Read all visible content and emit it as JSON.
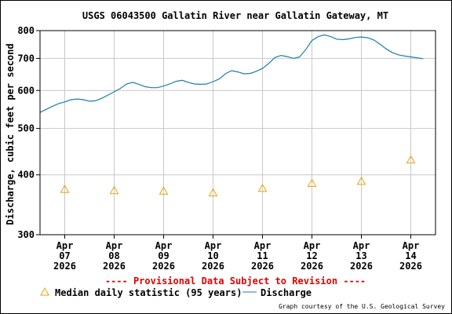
{
  "chart_data": {
    "type": "line",
    "title": "USGS 06043500 Gallatin River near Gallatin Gateway, MT",
    "ylabel": "Discharge, cubic feet per second",
    "y_scale": "log",
    "ylim": [
      300,
      800
    ],
    "y_ticks": [
      "300",
      "400",
      "500",
      "600",
      "700",
      "800"
    ],
    "xlim": [
      "2026-04-06T12:00",
      "2026-04-14T12:00"
    ],
    "x_ticks": [
      {
        "date": "2026-04-07",
        "month": "Apr",
        "day": "07",
        "year": "2026"
      },
      {
        "date": "2026-04-08",
        "month": "Apr",
        "day": "08",
        "year": "2026"
      },
      {
        "date": "2026-04-09",
        "month": "Apr",
        "day": "09",
        "year": "2026"
      },
      {
        "date": "2026-04-10",
        "month": "Apr",
        "day": "10",
        "year": "2026"
      },
      {
        "date": "2026-04-11",
        "month": "Apr",
        "day": "11",
        "year": "2026"
      },
      {
        "date": "2026-04-12",
        "month": "Apr",
        "day": "12",
        "year": "2026"
      },
      {
        "date": "2026-04-13",
        "month": "Apr",
        "day": "13",
        "year": "2026"
      },
      {
        "date": "2026-04-14",
        "month": "Apr",
        "day": "14",
        "year": "2026"
      }
    ],
    "grid": true,
    "series": [
      {
        "name": "Discharge",
        "kind": "line",
        "color": "#1a7fa6",
        "points": [
          [
            "2026-04-06T12:00",
            540
          ],
          [
            "2026-04-06T15:00",
            548
          ],
          [
            "2026-04-06T18:00",
            556
          ],
          [
            "2026-04-06T21:00",
            563
          ],
          [
            "2026-04-07T00:00",
            568
          ],
          [
            "2026-04-07T03:00",
            574
          ],
          [
            "2026-04-07T06:00",
            576
          ],
          [
            "2026-04-07T09:00",
            574
          ],
          [
            "2026-04-07T12:00",
            570
          ],
          [
            "2026-04-07T15:00",
            571
          ],
          [
            "2026-04-07T18:00",
            578
          ],
          [
            "2026-04-07T21:00",
            587
          ],
          [
            "2026-04-08T00:00",
            596
          ],
          [
            "2026-04-08T03:00",
            606
          ],
          [
            "2026-04-08T06:00",
            619
          ],
          [
            "2026-04-08T09:00",
            624
          ],
          [
            "2026-04-08T12:00",
            618
          ],
          [
            "2026-04-08T15:00",
            611
          ],
          [
            "2026-04-08T18:00",
            608
          ],
          [
            "2026-04-08T21:00",
            608
          ],
          [
            "2026-04-09T00:00",
            613
          ],
          [
            "2026-04-09T03:00",
            619
          ],
          [
            "2026-04-09T06:00",
            627
          ],
          [
            "2026-04-09T09:00",
            630
          ],
          [
            "2026-04-09T12:00",
            624
          ],
          [
            "2026-04-09T15:00",
            619
          ],
          [
            "2026-04-09T18:00",
            618
          ],
          [
            "2026-04-09T21:00",
            619
          ],
          [
            "2026-04-10T00:00",
            626
          ],
          [
            "2026-04-10T03:00",
            634
          ],
          [
            "2026-04-10T06:00",
            650
          ],
          [
            "2026-04-10T09:00",
            660
          ],
          [
            "2026-04-10T12:00",
            656
          ],
          [
            "2026-04-10T15:00",
            650
          ],
          [
            "2026-04-10T18:00",
            651
          ],
          [
            "2026-04-10T21:00",
            658
          ],
          [
            "2026-04-11T00:00",
            667
          ],
          [
            "2026-04-11T03:00",
            683
          ],
          [
            "2026-04-11T06:00",
            703
          ],
          [
            "2026-04-11T09:00",
            710
          ],
          [
            "2026-04-11T12:00",
            706
          ],
          [
            "2026-04-11T15:00",
            700
          ],
          [
            "2026-04-11T18:00",
            705
          ],
          [
            "2026-04-11T21:00",
            730
          ],
          [
            "2026-04-12T00:00",
            763
          ],
          [
            "2026-04-12T03:00",
            777
          ],
          [
            "2026-04-12T06:00",
            784
          ],
          [
            "2026-04-12T09:00",
            778
          ],
          [
            "2026-04-12T12:00",
            768
          ],
          [
            "2026-04-12T15:00",
            766
          ],
          [
            "2026-04-12T18:00",
            769
          ],
          [
            "2026-04-12T21:00",
            774
          ],
          [
            "2026-04-13T00:00",
            776
          ],
          [
            "2026-04-13T03:00",
            773
          ],
          [
            "2026-04-13T06:00",
            765
          ],
          [
            "2026-04-13T09:00",
            750
          ],
          [
            "2026-04-13T12:00",
            733
          ],
          [
            "2026-04-13T15:00",
            720
          ],
          [
            "2026-04-13T18:00",
            712
          ],
          [
            "2026-04-13T21:00",
            708
          ],
          [
            "2026-04-14T00:00",
            705
          ],
          [
            "2026-04-14T03:00",
            702
          ],
          [
            "2026-04-14T06:00",
            699
          ]
        ]
      },
      {
        "name": "Median daily statistic (95 years)",
        "kind": "marker",
        "color": "#e8a20c",
        "points": [
          [
            "2026-04-07",
            373
          ],
          [
            "2026-04-08",
            371
          ],
          [
            "2026-04-09",
            370
          ],
          [
            "2026-04-10",
            367
          ],
          [
            "2026-04-11",
            375
          ],
          [
            "2026-04-12",
            384
          ],
          [
            "2026-04-13",
            388
          ],
          [
            "2026-04-14",
            430
          ]
        ]
      }
    ],
    "notice": "---- Provisional Data Subject to Revision ----",
    "notice_color": "#e00000",
    "legend": {
      "placement": "bottom",
      "items": [
        "Median daily statistic (95 years)",
        "Discharge"
      ]
    },
    "credit": "Graph courtesy of the U.S. Geological Survey"
  }
}
